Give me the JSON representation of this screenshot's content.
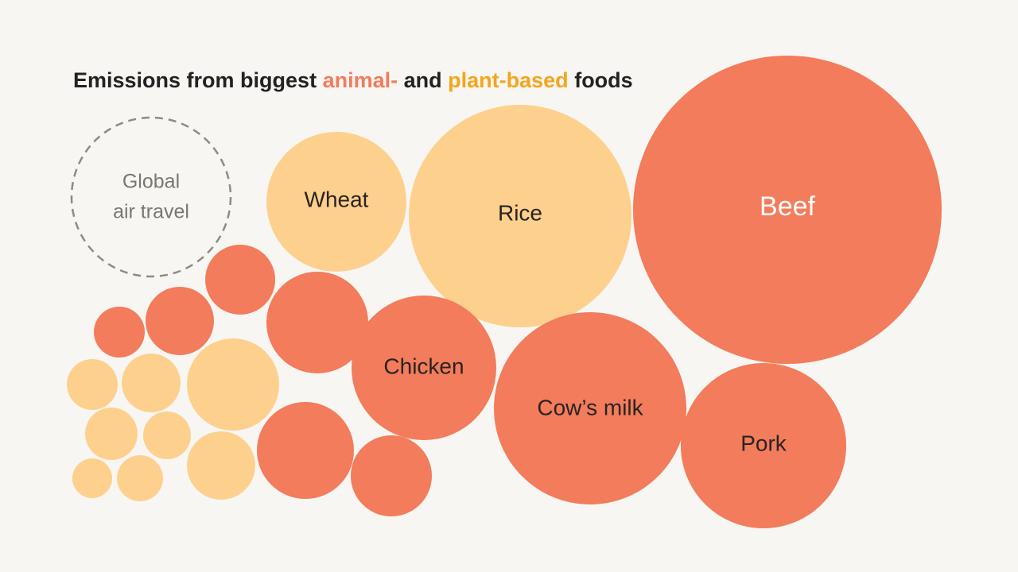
{
  "title": {
    "part1": "Emissions from biggest",
    "animal": "animal-",
    "part2": "and",
    "plant": "plant-based",
    "part3": "foods"
  },
  "reference": {
    "lines": [
      "Global",
      "air travel"
    ]
  },
  "nodes": [
    {
      "label": "Wheat"
    },
    {
      "label": "Rice"
    },
    {
      "label": "Beef"
    },
    {
      "label": "Chicken"
    },
    {
      "label": "Cow’s milk"
    },
    {
      "label": "Pork"
    }
  ]
}
